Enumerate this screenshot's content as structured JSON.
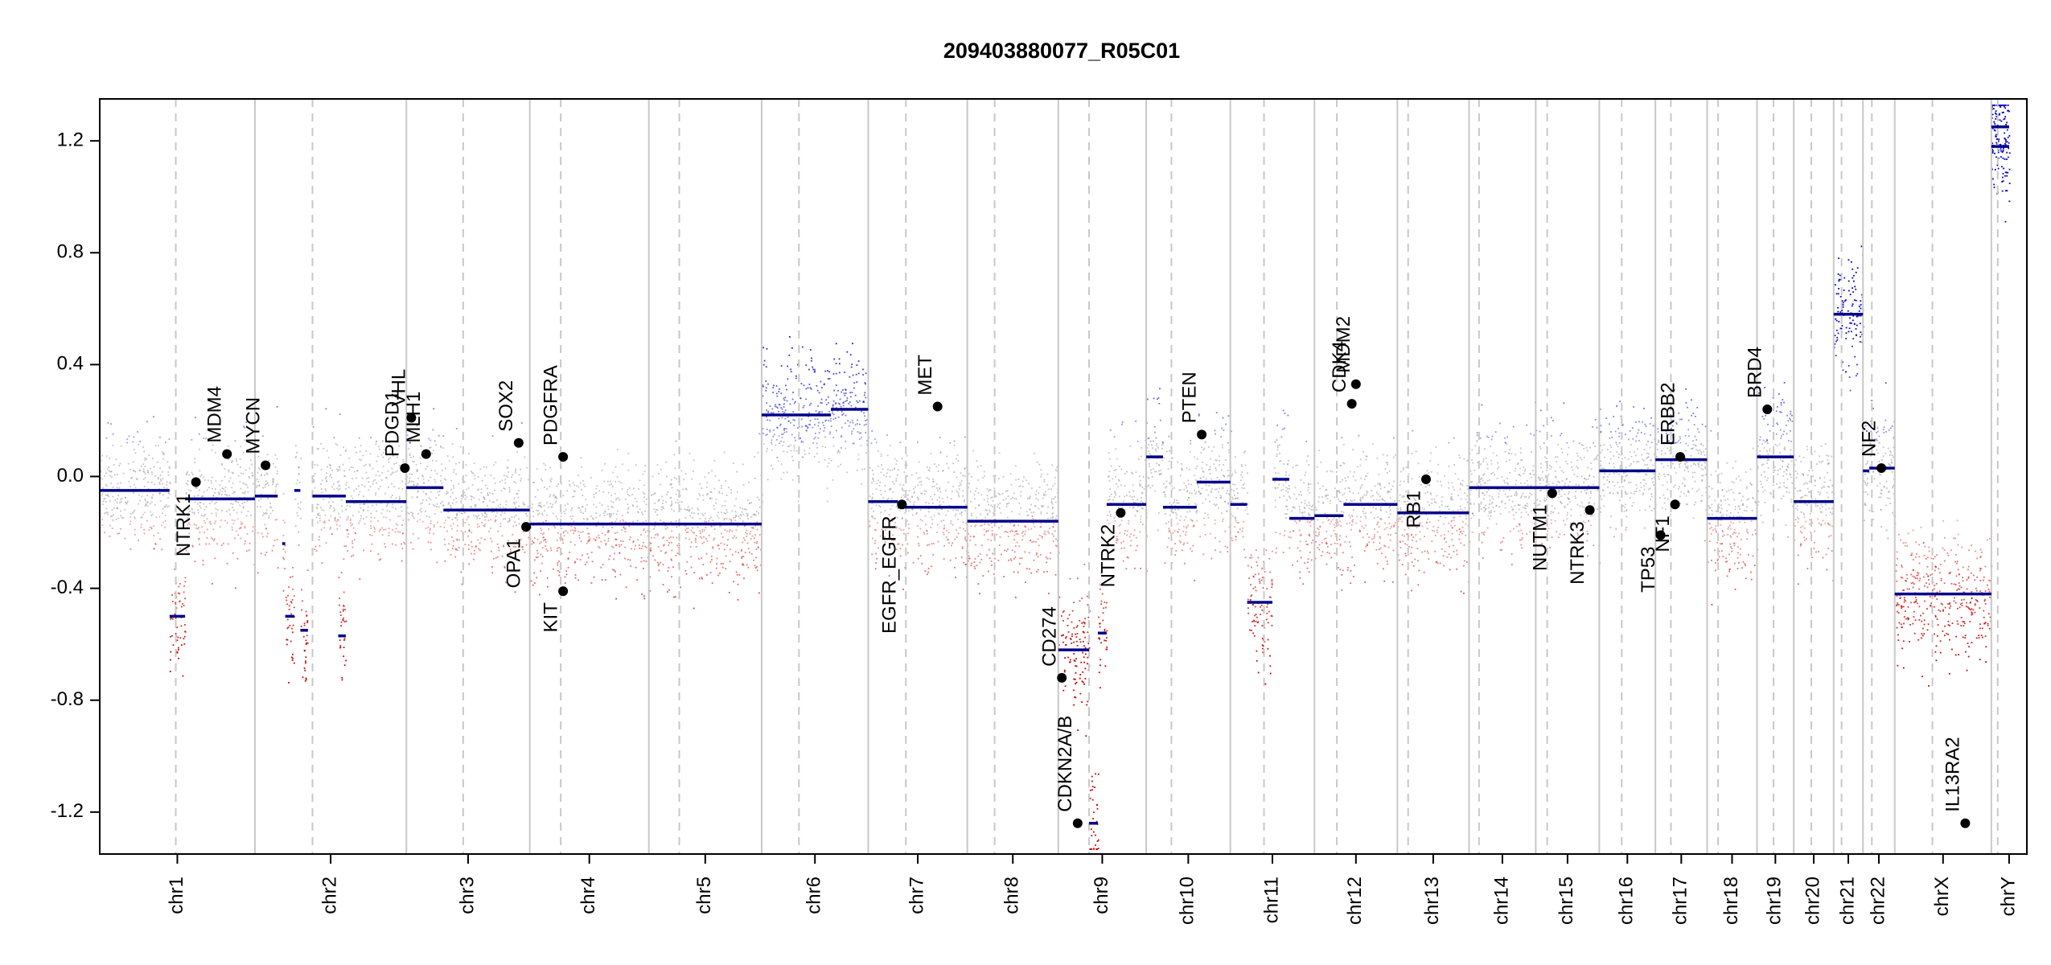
{
  "chart_data": {
    "type": "scatter",
    "title": "209403880077_R05C01",
    "xlabel": "",
    "ylabel": "",
    "ylim": [
      -1.35,
      1.35
    ],
    "y_ticks": [
      1.2,
      0.8,
      0.4,
      0.0,
      -0.4,
      -0.8,
      -1.2
    ],
    "y_tick_labels": [
      "1.2",
      "0.8",
      "0.4",
      "0.0",
      "-0.4",
      "-0.8",
      "-1.2"
    ],
    "chromosomes": [
      {
        "name": "chr1",
        "size": 249,
        "centromere": 0.49
      },
      {
        "name": "chr2",
        "size": 243,
        "centromere": 0.38
      },
      {
        "name": "chr3",
        "size": 198,
        "centromere": 0.46
      },
      {
        "name": "chr4",
        "size": 191,
        "centromere": 0.26
      },
      {
        "name": "chr5",
        "size": 181,
        "centromere": 0.27
      },
      {
        "name": "chr6",
        "size": 171,
        "centromere": 0.35
      },
      {
        "name": "chr7",
        "size": 159,
        "centromere": 0.38
      },
      {
        "name": "chr8",
        "size": 146,
        "centromere": 0.3
      },
      {
        "name": "chr9",
        "size": 141,
        "centromere": 0.35
      },
      {
        "name": "chr10",
        "size": 135,
        "centromere": 0.3
      },
      {
        "name": "chr11",
        "size": 135,
        "centromere": 0.4
      },
      {
        "name": "chr12",
        "size": 133,
        "centromere": 0.27
      },
      {
        "name": "chr13",
        "size": 115,
        "centromere": 0.15
      },
      {
        "name": "chr14",
        "size": 107,
        "centromere": 0.15
      },
      {
        "name": "chr15",
        "size": 102,
        "centromere": 0.18
      },
      {
        "name": "chr16",
        "size": 90,
        "centromere": 0.4
      },
      {
        "name": "chr17",
        "size": 83,
        "centromere": 0.3
      },
      {
        "name": "chr18",
        "size": 80,
        "centromere": 0.22
      },
      {
        "name": "chr19",
        "size": 59,
        "centromere": 0.45
      },
      {
        "name": "chr20",
        "size": 64,
        "centromere": 0.44
      },
      {
        "name": "chr21",
        "size": 47,
        "centromere": 0.27
      },
      {
        "name": "chr22",
        "size": 51,
        "centromere": 0.28
      },
      {
        "name": "chrX",
        "size": 155,
        "centromere": 0.39
      },
      {
        "name": "chrY",
        "size": 57,
        "centromere": 0.18
      }
    ],
    "segments": [
      {
        "chr": "chr1",
        "start": 0.0,
        "end": 0.45,
        "y": -0.05
      },
      {
        "chr": "chr1",
        "start": 0.45,
        "end": 0.55,
        "y": -0.5
      },
      {
        "chr": "chr1",
        "start": 0.55,
        "end": 1.0,
        "y": -0.08
      },
      {
        "chr": "chr2",
        "start": 0.0,
        "end": 0.15,
        "y": -0.07
      },
      {
        "chr": "chr2",
        "start": 0.18,
        "end": 0.2,
        "y": -0.24
      },
      {
        "chr": "chr2",
        "start": 0.2,
        "end": 0.26,
        "y": -0.5
      },
      {
        "chr": "chr2",
        "start": 0.26,
        "end": 0.3,
        "y": -0.05
      },
      {
        "chr": "chr2",
        "start": 0.3,
        "end": 0.35,
        "y": -0.55
      },
      {
        "chr": "chr2",
        "start": 0.38,
        "end": 0.6,
        "y": -0.07
      },
      {
        "chr": "chr2",
        "start": 0.55,
        "end": 0.6,
        "y": -0.57
      },
      {
        "chr": "chr2",
        "start": 0.6,
        "end": 1.0,
        "y": -0.09
      },
      {
        "chr": "chr3",
        "start": 0.0,
        "end": 0.3,
        "y": -0.04
      },
      {
        "chr": "chr3",
        "start": 0.3,
        "end": 1.0,
        "y": -0.12
      },
      {
        "chr": "chr4",
        "start": 0.0,
        "end": 1.0,
        "y": -0.17
      },
      {
        "chr": "chr5",
        "start": 0.0,
        "end": 1.0,
        "y": -0.17
      },
      {
        "chr": "chr6",
        "start": 0.0,
        "end": 0.65,
        "y": 0.22
      },
      {
        "chr": "chr6",
        "start": 0.65,
        "end": 1.0,
        "y": 0.24
      },
      {
        "chr": "chr7",
        "start": 0.0,
        "end": 0.3,
        "y": -0.09
      },
      {
        "chr": "chr7",
        "start": 0.3,
        "end": 1.0,
        "y": -0.11
      },
      {
        "chr": "chr8",
        "start": 0.0,
        "end": 1.0,
        "y": -0.16
      },
      {
        "chr": "chr9",
        "start": 0.0,
        "end": 0.35,
        "y": -0.62
      },
      {
        "chr": "chr9",
        "start": 0.35,
        "end": 0.45,
        "y": -1.24
      },
      {
        "chr": "chr9",
        "start": 0.45,
        "end": 0.55,
        "y": -0.56
      },
      {
        "chr": "chr9",
        "start": 0.55,
        "end": 1.0,
        "y": -0.1
      },
      {
        "chr": "chr10",
        "start": 0.0,
        "end": 0.2,
        "y": 0.07
      },
      {
        "chr": "chr10",
        "start": 0.2,
        "end": 0.6,
        "y": -0.11
      },
      {
        "chr": "chr10",
        "start": 0.6,
        "end": 1.0,
        "y": -0.02
      },
      {
        "chr": "chr11",
        "start": 0.0,
        "end": 0.2,
        "y": -0.1
      },
      {
        "chr": "chr11",
        "start": 0.2,
        "end": 0.5,
        "y": -0.45
      },
      {
        "chr": "chr11",
        "start": 0.5,
        "end": 0.7,
        "y": -0.01
      },
      {
        "chr": "chr11",
        "start": 0.7,
        "end": 1.0,
        "y": -0.15
      },
      {
        "chr": "chr12",
        "start": 0.0,
        "end": 0.35,
        "y": -0.14
      },
      {
        "chr": "chr12",
        "start": 0.35,
        "end": 1.0,
        "y": -0.1
      },
      {
        "chr": "chr13",
        "start": 0.0,
        "end": 1.0,
        "y": -0.13
      },
      {
        "chr": "chr14",
        "start": 0.0,
        "end": 1.0,
        "y": -0.04
      },
      {
        "chr": "chr15",
        "start": 0.0,
        "end": 1.0,
        "y": -0.04
      },
      {
        "chr": "chr16",
        "start": 0.0,
        "end": 1.0,
        "y": 0.02
      },
      {
        "chr": "chr17",
        "start": 0.0,
        "end": 1.0,
        "y": 0.06
      },
      {
        "chr": "chr18",
        "start": 0.0,
        "end": 1.0,
        "y": -0.15
      },
      {
        "chr": "chr19",
        "start": 0.0,
        "end": 1.0,
        "y": 0.07
      },
      {
        "chr": "chr20",
        "start": 0.0,
        "end": 1.0,
        "y": -0.09
      },
      {
        "chr": "chr21",
        "start": 0.0,
        "end": 1.0,
        "y": 0.58
      },
      {
        "chr": "chr22",
        "start": 0.0,
        "end": 0.2,
        "y": 0.02
      },
      {
        "chr": "chr22",
        "start": 0.2,
        "end": 1.0,
        "y": 0.03
      },
      {
        "chr": "chrX",
        "start": 0.0,
        "end": 1.0,
        "y": -0.42
      },
      {
        "chr": "chrY",
        "start": 0.0,
        "end": 0.5,
        "y": 1.25
      },
      {
        "chr": "chrY",
        "start": 0.0,
        "end": 0.5,
        "y": 1.18
      }
    ],
    "genes": [
      {
        "name": "NTRK1",
        "chr": "chr1",
        "pos": 0.62,
        "y": -0.02,
        "label_side": "below"
      },
      {
        "name": "MDM4",
        "chr": "chr1",
        "pos": 0.82,
        "y": 0.08,
        "label_side": "above"
      },
      {
        "name": "MYCN",
        "chr": "chr2",
        "pos": 0.07,
        "y": 0.04,
        "label_side": "above"
      },
      {
        "name": "PDGD1",
        "chr": "chr2",
        "pos": 0.99,
        "y": 0.03,
        "label_side": "above"
      },
      {
        "name": "VHL",
        "chr": "chr3",
        "pos": 0.04,
        "y": 0.21,
        "label_side": "above"
      },
      {
        "name": "MLH1",
        "chr": "chr3",
        "pos": 0.16,
        "y": 0.08,
        "label_side": "above"
      },
      {
        "name": "SOX2",
        "chr": "chr3",
        "pos": 0.91,
        "y": 0.12,
        "label_side": "above"
      },
      {
        "name": "OPA1",
        "chr": "chr3",
        "pos": 0.97,
        "y": -0.18,
        "label_side": "below"
      },
      {
        "name": "PDGFRA",
        "chr": "chr4",
        "pos": 0.28,
        "y": 0.07,
        "label_side": "above"
      },
      {
        "name": "KIT",
        "chr": "chr4",
        "pos": 0.28,
        "y": -0.41,
        "label_side": "below"
      },
      {
        "name": "EGFR_EGFR",
        "chr": "chr7",
        "pos": 0.34,
        "y": -0.1,
        "label_side": "below"
      },
      {
        "name": "MET",
        "chr": "chr7",
        "pos": 0.7,
        "y": 0.25,
        "label_side": "above"
      },
      {
        "name": "CD274",
        "chr": "chr9",
        "pos": 0.04,
        "y": -0.72,
        "label_side": "above"
      },
      {
        "name": "CDKN2A/B",
        "chr": "chr9",
        "pos": 0.22,
        "y": -1.24,
        "label_side": "above"
      },
      {
        "name": "NTRK2",
        "chr": "chr9",
        "pos": 0.71,
        "y": -0.13,
        "label_side": "below"
      },
      {
        "name": "PTEN",
        "chr": "chr10",
        "pos": 0.66,
        "y": 0.15,
        "label_side": "above"
      },
      {
        "name": "CDK4",
        "chr": "chr12",
        "pos": 0.45,
        "y": 0.26,
        "label_side": "above"
      },
      {
        "name": "MDM2",
        "chr": "chr12",
        "pos": 0.5,
        "y": 0.33,
        "label_side": "above"
      },
      {
        "name": "RB1",
        "chr": "chr13",
        "pos": 0.4,
        "y": -0.01,
        "label_side": "below"
      },
      {
        "name": "NUTM1",
        "chr": "chr15",
        "pos": 0.26,
        "y": -0.06,
        "label_side": "below"
      },
      {
        "name": "NTRK3",
        "chr": "chr15",
        "pos": 0.85,
        "y": -0.12,
        "label_side": "below"
      },
      {
        "name": "TP53",
        "chr": "chr17",
        "pos": 0.1,
        "y": -0.21,
        "label_side": "below"
      },
      {
        "name": "NF1",
        "chr": "chr17",
        "pos": 0.38,
        "y": -0.1,
        "label_side": "below"
      },
      {
        "name": "ERBB2",
        "chr": "chr17",
        "pos": 0.48,
        "y": 0.07,
        "label_side": "above"
      },
      {
        "name": "BRD4",
        "chr": "chr19",
        "pos": 0.28,
        "y": 0.24,
        "label_side": "above"
      },
      {
        "name": "NF2",
        "chr": "chr22",
        "pos": 0.58,
        "y": 0.03,
        "label_side": "above"
      },
      {
        "name": "IL13RA2",
        "chrX": true,
        "chr": "chrX",
        "pos": 0.73,
        "y": -1.24,
        "label_side": "above"
      }
    ],
    "colors": {
      "gain": "#0000c8",
      "loss": "#c80000",
      "neutral": "#b4b4b4",
      "segment": "#00008b",
      "gene_point": "#000000",
      "chr_boundary": "#c8c8c8",
      "centromere": "#c8c8c8"
    },
    "grid": false,
    "legend": "none"
  }
}
